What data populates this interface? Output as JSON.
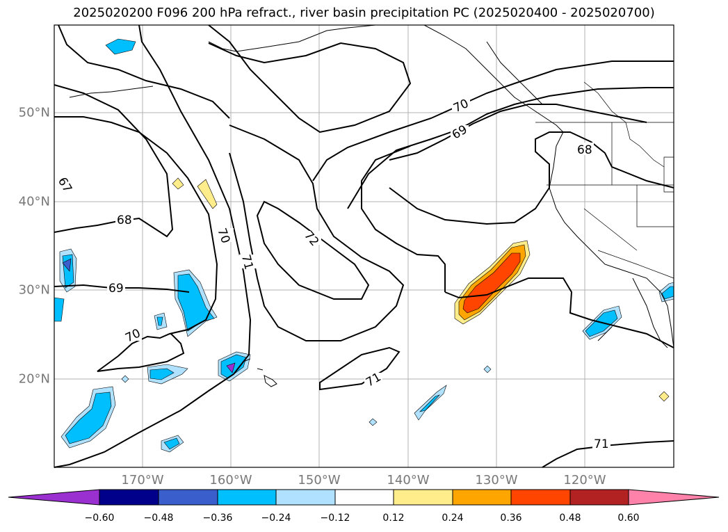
{
  "title": "2025020200 F096 200 hPa refract., river basin precipitation PC (2025020400 - 2025020700)",
  "lat_labels": [
    "50°N",
    "40°N",
    "30°N",
    "20°N"
  ],
  "lon_labels": [
    "170°W",
    "160°W",
    "150°W",
    "140°W",
    "130°W",
    "120°W"
  ],
  "contour_labels": [
    "67",
    "68",
    "69",
    "70",
    "70",
    "71",
    "72",
    "70",
    "69",
    "68",
    "71",
    "71"
  ],
  "colorbar": {
    "ticks": [
      "−0.60",
      "−0.48",
      "−0.36",
      "−0.24",
      "−0.12",
      "0.12",
      "0.24",
      "0.36",
      "0.48",
      "0.60"
    ],
    "colors": [
      "#9b30d0",
      "#00008b",
      "#3a5fcd",
      "#00bfff",
      "#b0e2ff",
      "#ffffff",
      "#ffec8b",
      "#ffa500",
      "#ff4500",
      "#b22222",
      "#ff82ab"
    ]
  },
  "colors": {
    "land_outline": "#000000",
    "grid": "#b0b0b0",
    "axis_label": "#777777"
  }
}
